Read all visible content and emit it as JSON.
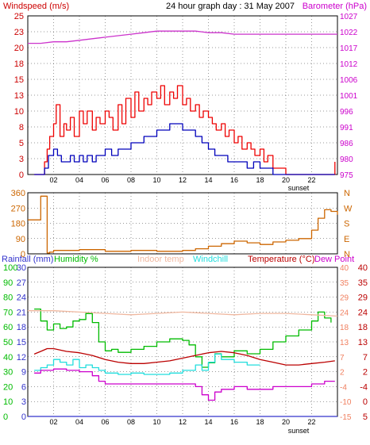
{
  "title": "24 hour graph day : 31 May 2007",
  "colors": {
    "windspeed_axis": "#cc0000",
    "barometer_axis": "#cc00cc",
    "gust": "#ee0000",
    "avg_wind": "#0000bb",
    "barometer": "#cc33cc",
    "wind_dir": "#cc6600",
    "rainfall": "#3333cc",
    "humidity": "#00bb00",
    "indoor": "#f0b8a0",
    "windchill": "#22dddd",
    "temperature": "#bb0000",
    "dewpoint": "#cc00cc",
    "grid": "#000000",
    "frame": "#000000"
  },
  "chart_data": [
    {
      "type": "line",
      "name": "windspeed-barometer",
      "left_axis_label": "Windspeed (m/s)",
      "right_axis_label": "Barometer (hPa)",
      "left_ticks": [
        "0",
        "3",
        "5",
        "8",
        "10",
        "13",
        "15",
        "18",
        "20",
        "23",
        "25"
      ],
      "right_ticks": [
        "975",
        "980",
        "986",
        "991",
        "996",
        "1001",
        "1006",
        "1012",
        "1017",
        "1022",
        "1027"
      ],
      "x_ticks": [
        "02",
        "04",
        "06",
        "08",
        "10",
        "12",
        "14",
        "16",
        "18",
        "20",
        "22"
      ],
      "x_note": "sunset",
      "ylim_left": [
        0,
        25
      ],
      "ylim_right": [
        975,
        1027
      ],
      "xlim": [
        0,
        24
      ],
      "series": [
        {
          "key": "gust",
          "x": [
            0.5,
            1.0,
            1.3,
            1.5,
            1.7,
            2.0,
            2.2,
            2.5,
            2.8,
            3.0,
            3.3,
            3.6,
            4.0,
            4.3,
            4.6,
            5.0,
            5.3,
            5.6,
            6.0,
            6.3,
            6.6,
            7.0,
            7.3,
            7.6,
            8.0,
            8.3,
            8.6,
            9.0,
            9.3,
            9.6,
            10.0,
            10.3,
            10.6,
            11.0,
            11.3,
            11.6,
            12.0,
            12.3,
            12.6,
            13.0,
            13.3,
            13.6,
            14.0,
            14.3,
            14.6,
            15.0,
            15.3,
            15.6,
            16.0,
            16.3,
            16.6,
            17.0,
            17.3,
            17.6,
            18.0,
            18.3,
            18.6,
            19.0,
            19.3,
            19.6,
            20.0,
            20.5,
            21.0,
            21.5,
            22.0,
            22.5,
            23.0,
            23.3,
            23.6,
            23.8
          ],
          "y": [
            0,
            0,
            2,
            4,
            6,
            8,
            11,
            6,
            8,
            7,
            9,
            6,
            10,
            8,
            10,
            7,
            9,
            8,
            10,
            9,
            7,
            11,
            8,
            12,
            9,
            13,
            10,
            12,
            11,
            13,
            12,
            14,
            11,
            13,
            12,
            14,
            11,
            12,
            10,
            11,
            9,
            10,
            9,
            8,
            7,
            8,
            6,
            7,
            5,
            6,
            4,
            5,
            4,
            3,
            4,
            2,
            3,
            1,
            1,
            1,
            0,
            0,
            0,
            0,
            0,
            0,
            0,
            0,
            0,
            2
          ]
        },
        {
          "key": "avg_wind",
          "x": [
            0.5,
            1.0,
            1.3,
            1.6,
            2.0,
            2.3,
            2.6,
            3.0,
            3.3,
            3.6,
            4.0,
            4.3,
            4.6,
            5.0,
            5.3,
            5.6,
            6.0,
            6.5,
            7.0,
            7.5,
            8.0,
            8.5,
            9.0,
            9.5,
            10.0,
            10.5,
            11.0,
            11.5,
            12.0,
            12.5,
            13.0,
            13.5,
            14.0,
            14.5,
            15.0,
            15.5,
            16.0,
            16.5,
            17.0,
            17.5,
            18.0,
            18.5,
            19.0,
            19.5,
            20.0,
            21.0,
            22.0,
            23.0,
            23.8
          ],
          "y": [
            0,
            0,
            1,
            3,
            4,
            3,
            2,
            2,
            3,
            2,
            3,
            2,
            3,
            2,
            3,
            3,
            4,
            3,
            4,
            4,
            5,
            5,
            6,
            6,
            7,
            7,
            8,
            8,
            7,
            7,
            6,
            5,
            4,
            3,
            3,
            2,
            2,
            2,
            1,
            2,
            1,
            1,
            0,
            0,
            0,
            0,
            0,
            0,
            0
          ]
        },
        {
          "key": "barometer",
          "x": [
            0,
            1,
            2,
            3,
            4,
            5,
            6,
            7,
            8,
            9,
            10,
            11,
            12,
            13,
            14,
            15,
            16,
            17,
            18,
            19,
            20,
            21,
            22,
            23,
            24
          ],
          "y": [
            1018,
            1018,
            1018.5,
            1018.5,
            1019,
            1019.5,
            1020,
            1020.5,
            1021,
            1021.5,
            1022,
            1022,
            1022,
            1022,
            1021.5,
            1021.5,
            1021,
            1021,
            1021,
            1021,
            1021,
            1021,
            1021,
            1021,
            1021
          ]
        }
      ]
    },
    {
      "type": "line",
      "name": "wind-direction",
      "left_ticks": [
        "0",
        "90",
        "180",
        "270",
        "360"
      ],
      "right_ticks": [
        "N",
        "E",
        "S",
        "W",
        "N"
      ],
      "ylim": [
        0,
        360
      ],
      "xlim": [
        0,
        24
      ],
      "series": [
        {
          "key": "wind_dir",
          "x": [
            0,
            0.5,
            1.0,
            1.3,
            1.5,
            1.7,
            2,
            4,
            6,
            8,
            10,
            12,
            13,
            14,
            15,
            16,
            17,
            18,
            19,
            20,
            21,
            22,
            22.5,
            23,
            23.5,
            24
          ],
          "y": [
            200,
            200,
            340,
            340,
            5,
            10,
            20,
            25,
            15,
            20,
            15,
            20,
            30,
            45,
            60,
            75,
            65,
            55,
            70,
            80,
            90,
            140,
            210,
            260,
            250,
            230
          ]
        }
      ]
    },
    {
      "type": "line",
      "name": "temperature-humidity-rain",
      "labels": {
        "rainfall": "Rainfall (mm)",
        "humidity": "Humidity %",
        "indoor": "Indoor temp",
        "windchill": "Windchill",
        "temperature": "Temperature (°C)",
        "dewpoint": "Dew Point"
      },
      "humidity_ticks": [
        "0",
        "10",
        "20",
        "30",
        "40",
        "50",
        "60",
        "70",
        "80",
        "90",
        "100"
      ],
      "rain_ticks": [
        "0",
        "3",
        "6",
        "9",
        "12",
        "15",
        "18",
        "21",
        "24",
        "27",
        "30"
      ],
      "temp_f_ticks": [
        "-15",
        "-10",
        "-4",
        "2",
        "7",
        "13",
        "18",
        "24",
        "29",
        "35",
        "40"
      ],
      "temp_c_ticks": [
        "5",
        "0",
        "-4",
        "2",
        "7",
        "13",
        "18",
        "24",
        "29",
        "35",
        "40"
      ],
      "x_ticks": [
        "02",
        "04",
        "06",
        "08",
        "10",
        "12",
        "14",
        "16",
        "18",
        "20",
        "22"
      ],
      "x_note": "sunset",
      "ylim_temp": [
        -15,
        40
      ],
      "xlim": [
        0,
        24
      ],
      "series": [
        {
          "key": "humidity",
          "x": [
            0.5,
            1.0,
            1.5,
            2.0,
            2.5,
            3.0,
            3.5,
            4.0,
            4.5,
            5.0,
            5.5,
            6.0,
            6.5,
            7.0,
            8.0,
            9.0,
            10.0,
            11.0,
            12.0,
            12.5,
            13.0,
            13.5,
            14.0,
            14.5,
            15.0,
            16.0,
            17.0,
            18.0,
            19.0,
            20.0,
            21.0,
            22.0,
            22.5,
            23.0,
            23.5
          ],
          "y": [
            72,
            64,
            58,
            62,
            59,
            60,
            64,
            65,
            69,
            63,
            50,
            44,
            45,
            43,
            45,
            47,
            50,
            52,
            51,
            48,
            40,
            33,
            36,
            42,
            40,
            44,
            42,
            45,
            50,
            54,
            58,
            64,
            70,
            66,
            63
          ]
        },
        {
          "key": "indoor",
          "x": [
            0,
            2,
            4,
            6,
            8,
            10,
            12,
            14,
            16,
            18,
            20,
            22,
            24
          ],
          "y": [
            24,
            24,
            23.5,
            23,
            22.5,
            23,
            23.5,
            23,
            22.5,
            23,
            23,
            22.5,
            22
          ]
        },
        {
          "key": "windchill",
          "x": [
            0.5,
            1.0,
            1.5,
            2.0,
            2.5,
            3.0,
            3.5,
            4.0,
            4.5,
            5.0,
            5.5,
            6.0,
            7.0,
            8.0,
            9.0,
            10.0,
            11.0,
            12.0,
            13.0,
            13.5,
            14.0,
            14.5,
            15.0,
            16.0,
            17.0,
            18.0
          ],
          "y": [
            2,
            3,
            4,
            6,
            5,
            4,
            6,
            3,
            4,
            3,
            2,
            1,
            0.5,
            1,
            0.5,
            0.5,
            1,
            2,
            4,
            2,
            5,
            8,
            6,
            5,
            4,
            4
          ]
        },
        {
          "key": "temperature",
          "x": [
            0.5,
            1.0,
            1.5,
            2.0,
            2.5,
            3.0,
            4.0,
            5.0,
            6.0,
            7.0,
            8.0,
            9.0,
            10.0,
            11.0,
            12.0,
            13.0,
            14.0,
            15.0,
            16.0,
            17.0,
            18.0,
            19.0,
            20.0,
            21.0,
            22.0,
            23.0,
            23.8
          ],
          "y": [
            8,
            9,
            10,
            10,
            9.5,
            9,
            8.5,
            7.5,
            6,
            5,
            4.5,
            4.5,
            5,
            5.5,
            6.5,
            7.5,
            8.5,
            9,
            8.5,
            7.5,
            6,
            5,
            4,
            4,
            4.5,
            5,
            5.5
          ]
        },
        {
          "key": "dewpoint",
          "x": [
            0.5,
            1.0,
            1.5,
            2.0,
            3.0,
            4.0,
            5.0,
            5.5,
            6.0,
            7.0,
            8.0,
            9.0,
            10.0,
            11.0,
            12.0,
            13.0,
            13.5,
            14.0,
            14.5,
            15.0,
            16.0,
            17.0,
            18.0,
            19.0,
            20.0,
            21.0,
            22.0,
            23.0,
            23.8
          ],
          "y": [
            1,
            2,
            2,
            2.5,
            2,
            1.5,
            0,
            -2,
            -3,
            -3,
            -3,
            -3,
            -3,
            -3,
            -3,
            -4,
            -7,
            -9,
            -6,
            -5,
            -4,
            -5,
            -5,
            -4,
            -4,
            -4,
            -3,
            -2,
            -2
          ]
        },
        {
          "key": "rainfall",
          "x": [
            0,
            24
          ],
          "y": [
            0,
            0
          ]
        }
      ]
    }
  ]
}
